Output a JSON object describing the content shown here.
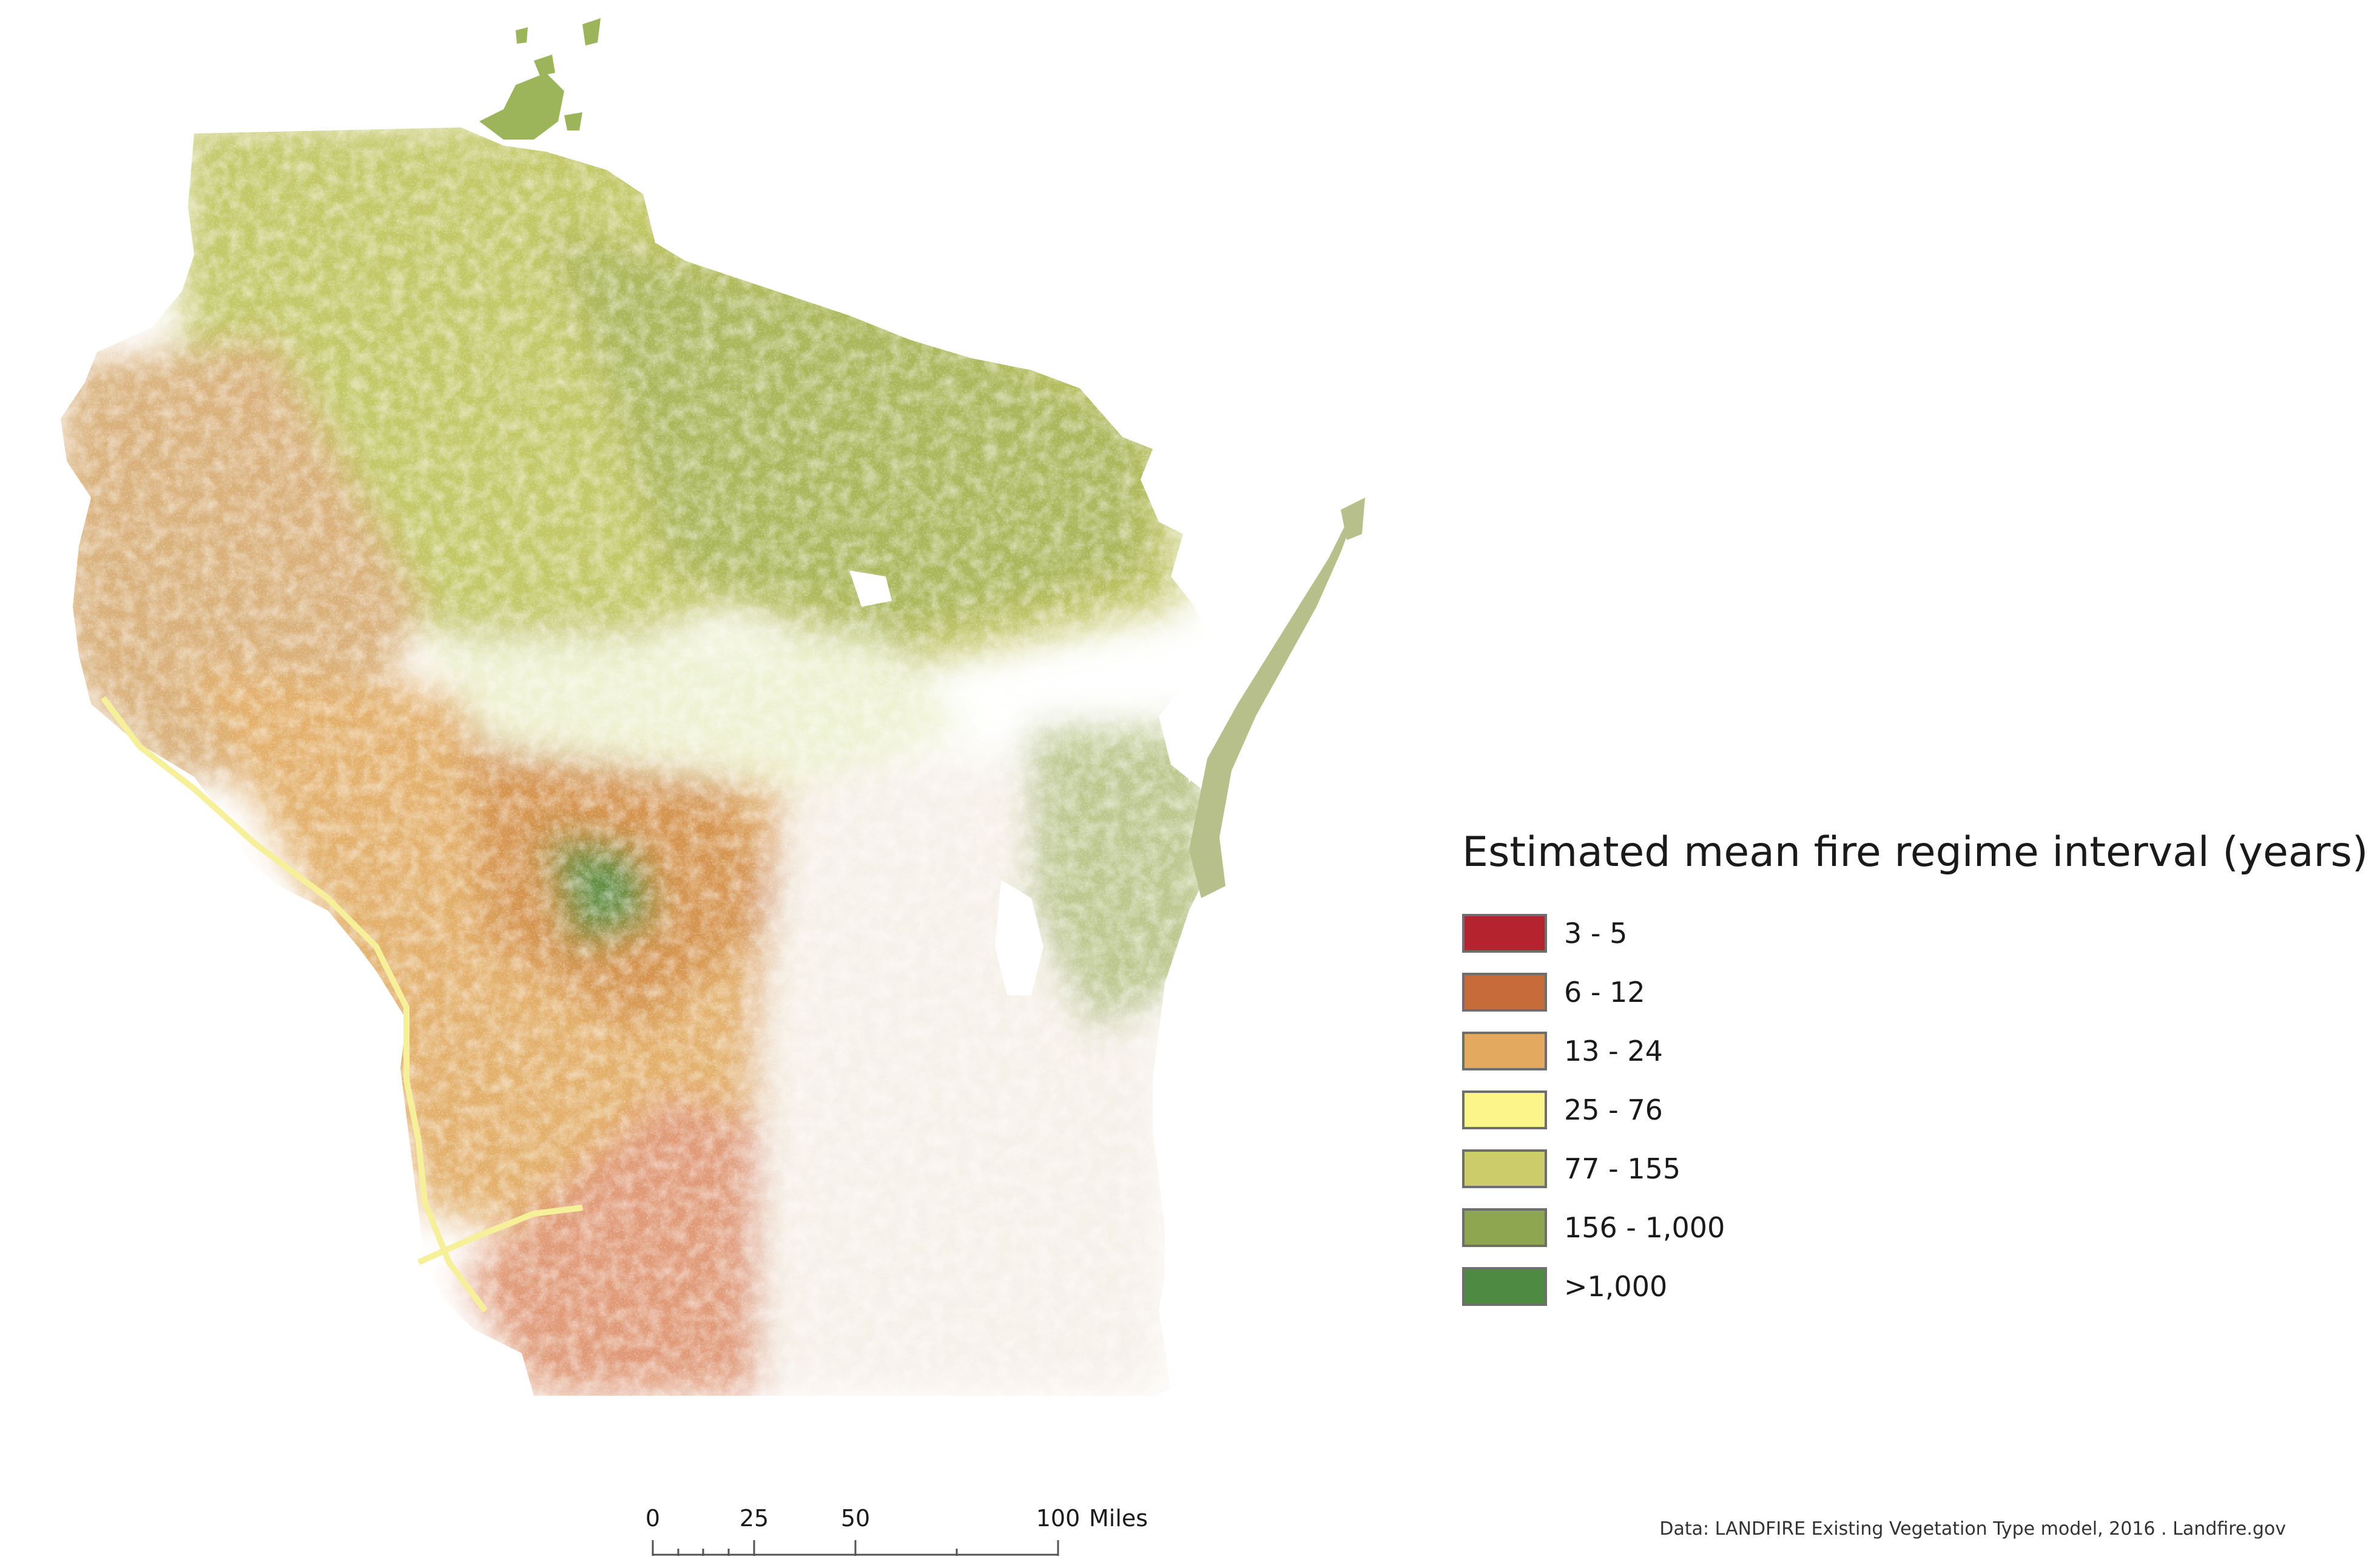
{
  "map": {
    "region": "Wisconsin",
    "colors": {
      "c1": "#b5232e",
      "c2": "#c86b3b",
      "c3": "#e3a95e",
      "c4": "#fcf58a",
      "c5": "#cdcc6a",
      "c6": "#8ea64f",
      "c7": "#4e8a41"
    }
  },
  "legend": {
    "title": "Estimated mean fire regime interval (years)",
    "items": [
      {
        "label": "3 - 5",
        "color": "#b5232e"
      },
      {
        "label": "6 - 12",
        "color": "#c86b3b"
      },
      {
        "label": "13 - 24",
        "color": "#e3a95e"
      },
      {
        "label": "25 - 76",
        "color": "#fcf58a"
      },
      {
        "label": "77 - 155",
        "color": "#cdcc6a"
      },
      {
        "label": "156 - 1,000",
        "color": "#8ea64f"
      },
      {
        "label": ">1,000",
        "color": "#4e8a41"
      }
    ]
  },
  "scale_bar": {
    "ticks": [
      {
        "value": 0,
        "label": "0"
      },
      {
        "value": 25,
        "label": "25"
      },
      {
        "value": 50,
        "label": "50"
      },
      {
        "value": 100,
        "label": "100"
      }
    ],
    "unit": "Miles"
  },
  "source": "Data: LANDFIRE Existing Vegetation Type  model, 2016 . Landfire.gov"
}
